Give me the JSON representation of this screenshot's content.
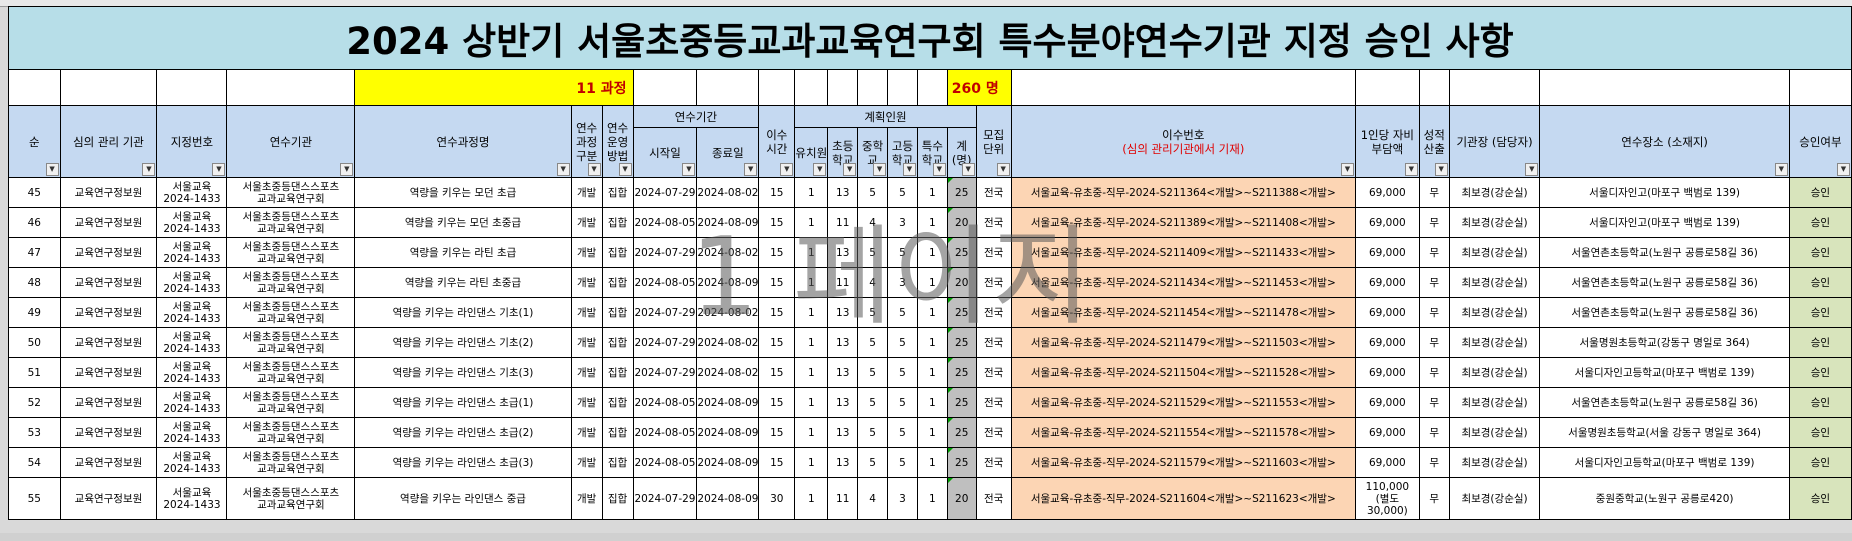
{
  "title": "2024 상반기 서울초중등교과교육연구회 특수분야연수기관 지정 승인 사항",
  "summary": {
    "courses": "11 과정",
    "people": "260 명"
  },
  "watermark": "1 페이지",
  "headers": {
    "no": "순",
    "review": "심의 관리 기관",
    "desig": "지정번호",
    "inst": "연수기관",
    "course": "연수과정명",
    "ctype": "연수 과정 구분",
    "method": "연수 운영 방법",
    "period": "연수기간",
    "start": "시작일",
    "end": "종료일",
    "hours": "이수 시간",
    "plan": "계획인원",
    "kinder": "유치원",
    "elem": "초등 학교",
    "mid": "중학교",
    "high": "고등 학교",
    "special": "특수 학교",
    "total": "계(명)",
    "recruit": "모집 단위",
    "cert": "이수번호",
    "cert_note": "(심의 관리기관에서 기재)",
    "fee": "1인당 자비 부담액",
    "grade": "성적 산출",
    "head": "기관장 (담당자)",
    "place": "연수장소 (소재지)",
    "approve": "승인여부"
  },
  "rows": [
    {
      "no": "45",
      "review": "교육연구정보원",
      "desig": "서울교육\n2024-1433",
      "inst": "서울초중등댄스스포츠\n교과교육연구회",
      "course": "역량을 키우는 모던 초급",
      "ctype": "개발",
      "method": "집합",
      "start": "2024-07-29",
      "end": "2024-08-02",
      "hours": "15",
      "kinder": "1",
      "elem": "13",
      "mid": "5",
      "high": "5",
      "special": "1",
      "total": "25",
      "recruit": "전국",
      "cert": "서울교육-유초중-직무-2024-S211364<개발>~S211388<개발>",
      "fee": "69,000",
      "grade": "무",
      "head": "최보경(강순실)",
      "place": "서울디자인고(마포구 백범로 139)",
      "approve": "승인"
    },
    {
      "no": "46",
      "review": "교육연구정보원",
      "desig": "서울교육\n2024-1433",
      "inst": "서울초중등댄스스포츠\n교과교육연구회",
      "course": "역량을 키우는 모던 초중급",
      "ctype": "개발",
      "method": "집합",
      "start": "2024-08-05",
      "end": "2024-08-09",
      "hours": "15",
      "kinder": "1",
      "elem": "11",
      "mid": "4",
      "high": "3",
      "special": "1",
      "total": "20",
      "recruit": "전국",
      "cert": "서울교육-유초중-직무-2024-S211389<개발>~S211408<개발>",
      "fee": "69,000",
      "grade": "무",
      "head": "최보경(강순실)",
      "place": "서울디자인고(마포구 백범로 139)",
      "approve": "승인"
    },
    {
      "no": "47",
      "review": "교육연구정보원",
      "desig": "서울교육\n2024-1433",
      "inst": "서울초중등댄스스포츠\n교과교육연구회",
      "course": "역량을 키우는 라틴 초급",
      "ctype": "개발",
      "method": "집합",
      "start": "2024-07-29",
      "end": "2024-08-02",
      "hours": "15",
      "kinder": "1",
      "elem": "13",
      "mid": "5",
      "high": "5",
      "special": "1",
      "total": "25",
      "recruit": "전국",
      "cert": "서울교육-유초중-직무-2024-S211409<개발>~S211433<개발>",
      "fee": "69,000",
      "grade": "무",
      "head": "최보경(강순실)",
      "place": "서울연촌초등학교(노원구 공릉로58길 36)",
      "approve": "승인"
    },
    {
      "no": "48",
      "review": "교육연구정보원",
      "desig": "서울교육\n2024-1433",
      "inst": "서울초중등댄스스포츠\n교과교육연구회",
      "course": "역량을 키우는 라틴 초중급",
      "ctype": "개발",
      "method": "집합",
      "start": "2024-08-05",
      "end": "2024-08-09",
      "hours": "15",
      "kinder": "1",
      "elem": "11",
      "mid": "4",
      "high": "3",
      "special": "1",
      "total": "20",
      "recruit": "전국",
      "cert": "서울교육-유초중-직무-2024-S211434<개발>~S211453<개발>",
      "fee": "69,000",
      "grade": "무",
      "head": "최보경(강순실)",
      "place": "서울연촌초등학교(노원구 공릉로58길 36)",
      "approve": "승인"
    },
    {
      "no": "49",
      "review": "교육연구정보원",
      "desig": "서울교육\n2024-1433",
      "inst": "서울초중등댄스스포츠\n교과교육연구회",
      "course": "역량을 키우는 라인댄스 기초(1)",
      "ctype": "개발",
      "method": "집합",
      "start": "2024-07-29",
      "end": "2024-08-02",
      "hours": "15",
      "kinder": "1",
      "elem": "13",
      "mid": "5",
      "high": "5",
      "special": "1",
      "total": "25",
      "recruit": "전국",
      "cert": "서울교육-유초중-직무-2024-S211454<개발>~S211478<개발>",
      "fee": "69,000",
      "grade": "무",
      "head": "최보경(강순실)",
      "place": "서울연촌초등학교(노원구 공릉로58길 36)",
      "approve": "승인"
    },
    {
      "no": "50",
      "review": "교육연구정보원",
      "desig": "서울교육\n2024-1433",
      "inst": "서울초중등댄스스포츠\n교과교육연구회",
      "course": "역량을 키우는 라인댄스 기초(2)",
      "ctype": "개발",
      "method": "집합",
      "start": "2024-07-29",
      "end": "2024-08-02",
      "hours": "15",
      "kinder": "1",
      "elem": "13",
      "mid": "5",
      "high": "5",
      "special": "1",
      "total": "25",
      "recruit": "전국",
      "cert": "서울교육-유초중-직무-2024-S211479<개발>~S211503<개발>",
      "fee": "69,000",
      "grade": "무",
      "head": "최보경(강순실)",
      "place": "서울명원초등학교(강동구 명일로 364)",
      "approve": "승인"
    },
    {
      "no": "51",
      "review": "교육연구정보원",
      "desig": "서울교육\n2024-1433",
      "inst": "서울초중등댄스스포츠\n교과교육연구회",
      "course": "역량을 키우는 라인댄스 기초(3)",
      "ctype": "개발",
      "method": "집합",
      "start": "2024-07-29",
      "end": "2024-08-02",
      "hours": "15",
      "kinder": "1",
      "elem": "13",
      "mid": "5",
      "high": "5",
      "special": "1",
      "total": "25",
      "recruit": "전국",
      "cert": "서울교육-유초중-직무-2024-S211504<개발>~S211528<개발>",
      "fee": "69,000",
      "grade": "무",
      "head": "최보경(강순실)",
      "place": "서울디자인고등학교(마포구 백범로 139)",
      "approve": "승인"
    },
    {
      "no": "52",
      "review": "교육연구정보원",
      "desig": "서울교육\n2024-1433",
      "inst": "서울초중등댄스스포츠\n교과교육연구회",
      "course": "역량을 키우는 라인댄스 초급(1)",
      "ctype": "개발",
      "method": "집합",
      "start": "2024-08-05",
      "end": "2024-08-09",
      "hours": "15",
      "kinder": "1",
      "elem": "13",
      "mid": "5",
      "high": "5",
      "special": "1",
      "total": "25",
      "recruit": "전국",
      "cert": "서울교육-유초중-직무-2024-S211529<개발>~S211553<개발>",
      "fee": "69,000",
      "grade": "무",
      "head": "최보경(강순실)",
      "place": "서울연촌초등학교(노원구 공릉로58길 36)",
      "approve": "승인"
    },
    {
      "no": "53",
      "review": "교육연구정보원",
      "desig": "서울교육\n2024-1433",
      "inst": "서울초중등댄스스포츠\n교과교육연구회",
      "course": "역량을 키우는 라인댄스 초급(2)",
      "ctype": "개발",
      "method": "집합",
      "start": "2024-08-05",
      "end": "2024-08-09",
      "hours": "15",
      "kinder": "1",
      "elem": "13",
      "mid": "5",
      "high": "5",
      "special": "1",
      "total": "25",
      "recruit": "전국",
      "cert": "서울교육-유초중-직무-2024-S211554<개발>~S211578<개발>",
      "fee": "69,000",
      "grade": "무",
      "head": "최보경(강순실)",
      "place": "서울명원초등학교(서울 강동구 명일로 364)",
      "approve": "승인"
    },
    {
      "no": "54",
      "review": "교육연구정보원",
      "desig": "서울교육\n2024-1433",
      "inst": "서울초중등댄스스포츠\n교과교육연구회",
      "course": "역량을 키우는 라인댄스 초급(3)",
      "ctype": "개발",
      "method": "집합",
      "start": "2024-08-05",
      "end": "2024-08-09",
      "hours": "15",
      "kinder": "1",
      "elem": "13",
      "mid": "5",
      "high": "5",
      "special": "1",
      "total": "25",
      "recruit": "전국",
      "cert": "서울교육-유초중-직무-2024-S211579<개발>~S211603<개발>",
      "fee": "69,000",
      "grade": "무",
      "head": "최보경(강순실)",
      "place": "서울디자인고등학교(마포구 백범로 139)",
      "approve": "승인"
    },
    {
      "no": "55",
      "review": "교육연구정보원",
      "desig": "서울교육\n2024-1433",
      "inst": "서울초중등댄스스포츠\n교과교육연구회",
      "course": "역량을 키우는 라인댄스 중급",
      "ctype": "개발",
      "method": "집합",
      "start": "2024-07-29",
      "end": "2024-08-09",
      "hours": "30",
      "kinder": "1",
      "elem": "11",
      "mid": "4",
      "high": "3",
      "special": "1",
      "total": "20",
      "recruit": "전국",
      "cert": "서울교육-유초중-직무-2024-S211604<개발>~S211623<개발>",
      "fee": "110,000\n(별도\n30,000)",
      "grade": "무",
      "head": "최보경(강순실)",
      "place": "중원중학교(노원구 공릉로420)",
      "approve": "승인"
    }
  ]
}
